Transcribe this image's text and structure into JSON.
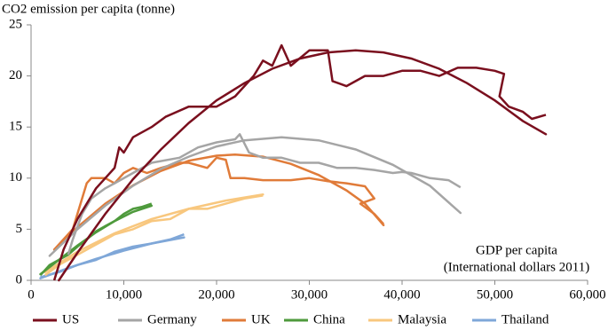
{
  "chart_data": {
    "type": "line",
    "y_label": "CO2 emission per capita (tonne)",
    "x_label": [
      "GDP per capita",
      "(International dollars 2011)"
    ],
    "xlim": [
      0,
      60000
    ],
    "xticks": [
      0,
      {
        "value": 10000,
        "label": "10,000"
      },
      {
        "value": 20000,
        "label": "20,000"
      },
      {
        "value": 30000,
        "label": "30,000"
      },
      {
        "value": 40000,
        "label": "40,000"
      },
      {
        "value": 50000,
        "label": "50,000"
      },
      {
        "value": 60000,
        "label": "60,000"
      }
    ],
    "ylim": [
      0,
      25
    ],
    "yticks": [
      0,
      5,
      10,
      15,
      20,
      25
    ],
    "grid": false,
    "legend": "bottom",
    "series": [
      {
        "name": "US",
        "color": "#7a0f1e",
        "x": [
          2500,
          3500,
          5000,
          7000,
          9000,
          9500,
          10000,
          11000,
          13000,
          14500,
          17000,
          20000,
          22000,
          24000,
          25000,
          26000,
          27000,
          28000,
          30000,
          32000,
          32500,
          34000,
          36000,
          38000,
          40000,
          42000,
          44000,
          46000,
          48000,
          50000,
          51000,
          50500,
          51500,
          53000,
          54000,
          55500
        ],
        "values": [
          0,
          3,
          6,
          9,
          11,
          13,
          12.5,
          14,
          15,
          16,
          17,
          17,
          18,
          20,
          21.5,
          21,
          23,
          21,
          22.5,
          22.5,
          19.5,
          19,
          20,
          20,
          20.5,
          20.5,
          20,
          20.8,
          20.8,
          20.5,
          20.2,
          18,
          17,
          16.5,
          15.8,
          16.2
        ],
        "fit_x": [
          3000,
          5000,
          8000,
          11000,
          14000,
          17000,
          20000,
          23000,
          26000,
          29000,
          32000,
          35000,
          38000,
          41000,
          44000,
          47000,
          50000,
          53000,
          55500
        ],
        "fit_values": [
          0,
          2.7,
          6.5,
          9.9,
          12.8,
          15.4,
          17.6,
          19.3,
          20.7,
          21.7,
          22.3,
          22.5,
          22.3,
          21.7,
          20.7,
          19.3,
          17.6,
          15.6,
          14.3
        ]
      },
      {
        "name": "Germany",
        "color": "#a5a5a5",
        "x": [
          4000,
          4500,
          5500,
          6500,
          8000,
          9000,
          11000,
          13000,
          16000,
          18000,
          20000,
          22000,
          22500,
          23500,
          25000,
          27000,
          29000,
          31000,
          33000,
          35000,
          37000,
          39000,
          40000,
          41000,
          43000,
          45000,
          46300
        ],
        "values": [
          2.5,
          4,
          6.5,
          8,
          9,
          9.5,
          10.5,
          11.5,
          12,
          13,
          13.5,
          13.8,
          14.3,
          12.5,
          12,
          12,
          11.5,
          11.5,
          11,
          11,
          10.8,
          10.5,
          10.6,
          10.5,
          10,
          9.8,
          9.1
        ],
        "fit_x": [
          2000,
          5000,
          8000,
          11000,
          14000,
          17000,
          20000,
          23000,
          27000,
          31000,
          35000,
          39000,
          43000,
          46300
        ],
        "fit_values": [
          2.4,
          5,
          7.3,
          9.25,
          10.9,
          12.1,
          13.1,
          13.7,
          14,
          13.7,
          12.8,
          11.3,
          9.25,
          6.6
        ]
      },
      {
        "name": "UK",
        "color": "#e07b39",
        "x": [
          2500,
          4500,
          5500,
          6000,
          6500,
          8000,
          9000,
          10000,
          11000,
          12500,
          14000,
          16000,
          17000,
          19000,
          20000,
          21000,
          21500,
          23000,
          25000,
          28000,
          30000,
          32000,
          34000,
          36000,
          37000,
          35500,
          37000,
          38000
        ],
        "values": [
          3,
          5,
          8,
          9.5,
          10,
          10,
          9.5,
          10.5,
          11,
          10.5,
          11,
          11.5,
          11.5,
          11,
          12,
          11.8,
          10,
          10,
          9.8,
          9.8,
          10,
          9.7,
          9.5,
          9.2,
          8,
          7.5,
          6.5,
          5.5
        ],
        "fit_x": [
          2500,
          5000,
          8000,
          11000,
          14000,
          17000,
          20000,
          22000,
          25000,
          28000,
          31000,
          34000,
          36000,
          38000
        ],
        "fit_values": [
          3,
          5.2,
          7.5,
          9.3,
          10.7,
          11.7,
          12.2,
          12.3,
          12.1,
          11.4,
          10.3,
          8.8,
          7.5,
          5.4
        ]
      },
      {
        "name": "China",
        "color": "#4e9a3c",
        "x": [
          1000,
          1500,
          2000,
          3000,
          4000,
          5000,
          6000,
          7000,
          8000,
          9000,
          10000,
          11000,
          12000,
          13000
        ],
        "values": [
          0.5,
          1,
          1.5,
          2,
          2.5,
          3.3,
          4,
          4.8,
          5.3,
          5.8,
          6.5,
          7,
          7.2,
          7.5
        ],
        "fit_x": [
          1000,
          3000,
          5000,
          7000,
          9000,
          11000,
          13000
        ],
        "fit_values": [
          0.6,
          2,
          3.4,
          4.7,
          5.8,
          6.7,
          7.3
        ]
      },
      {
        "name": "Malaysia",
        "color": "#f8c77e",
        "x": [
          1500,
          3000,
          5000,
          7000,
          9000,
          11000,
          13000,
          15000,
          17000,
          19000,
          21000,
          23000,
          25000
        ],
        "values": [
          0.5,
          1.5,
          2.5,
          3.5,
          4.5,
          5,
          5.8,
          6,
          7,
          7,
          7.5,
          8,
          8.3
        ],
        "fit_x": [
          1500,
          5000,
          9000,
          13000,
          17000,
          21000,
          25000
        ],
        "fit_values": [
          0.8,
          2.8,
          4.6,
          6,
          7,
          7.8,
          8.4
        ]
      },
      {
        "name": "Thailand",
        "color": "#7fa7d8",
        "x": [
          1000,
          3000,
          5000,
          7000,
          9000,
          11000,
          13000,
          15000,
          16500
        ],
        "values": [
          0.3,
          0.8,
          1.5,
          2,
          2.8,
          3.3,
          3.6,
          4,
          4.5
        ],
        "fit_x": [
          1000,
          4000,
          7000,
          10000,
          13000,
          16500
        ],
        "fit_values": [
          0.2,
          1.2,
          2.1,
          2.9,
          3.6,
          4.2
        ]
      }
    ]
  }
}
